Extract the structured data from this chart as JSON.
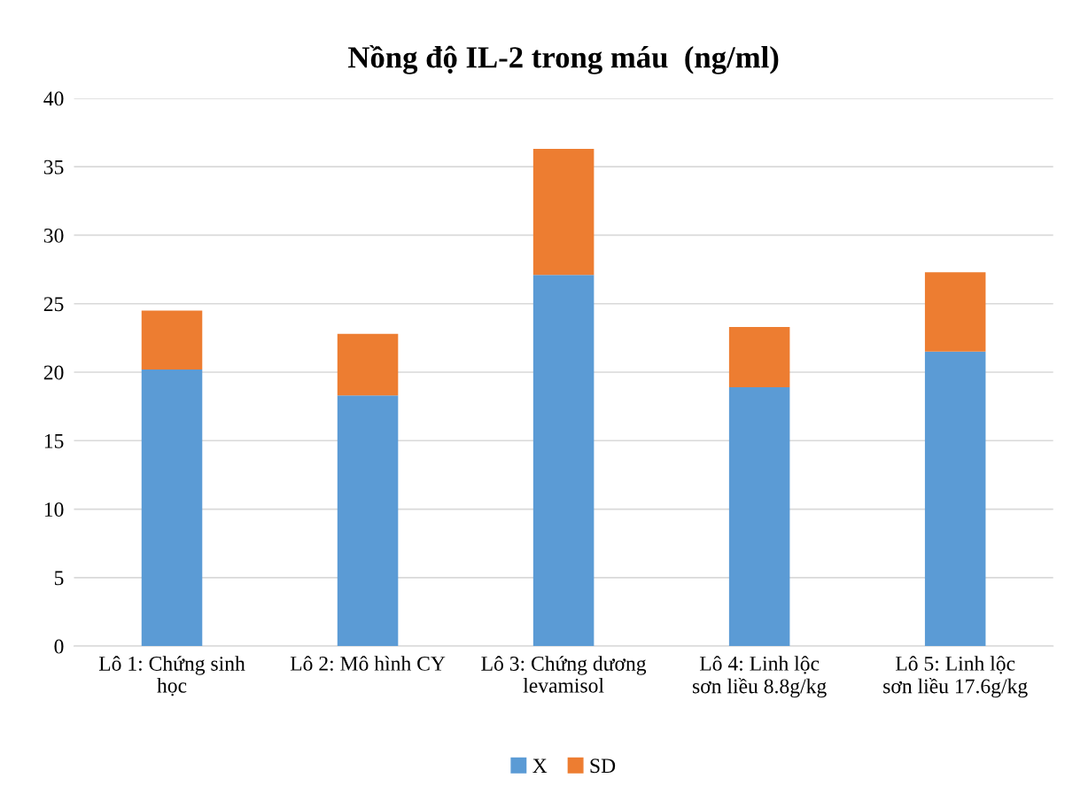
{
  "chart_data": {
    "type": "bar",
    "title": "Nồng độ IL-2 trong máu  (ng/ml)",
    "categories": [
      "Lô 1: Chứng sinh học",
      "Lô 2: Mô hình CY",
      "Lô 3: Chứng dương levamisol",
      "Lô 4: Linh lộc sơn liều 8.8g/kg",
      "Lô 5: Linh lộc sơn liều 17.6g/kg"
    ],
    "stacked": true,
    "series": [
      {
        "name": "X",
        "color": "#5b9bd5",
        "values": [
          20.2,
          18.3,
          27.1,
          18.9,
          21.5
        ]
      },
      {
        "name": "SD",
        "color": "#ed7d31",
        "values": [
          4.3,
          4.5,
          9.2,
          4.4,
          5.8
        ]
      }
    ],
    "ylim": [
      0,
      40
    ],
    "yticks": [
      0,
      5,
      10,
      15,
      20,
      25,
      30,
      35,
      40
    ],
    "grid": "y",
    "legend": "bottom"
  }
}
